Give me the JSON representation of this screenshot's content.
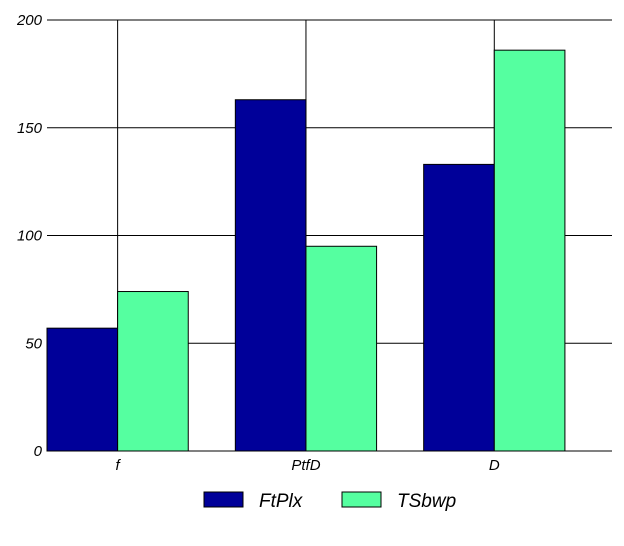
{
  "chart_data": {
    "type": "bar",
    "title": "",
    "xlabel": "",
    "ylabel": "",
    "categories": [
      "f",
      "PtfD",
      "D"
    ],
    "series": [
      {
        "name": "FtPlx",
        "color": "#000099",
        "values": [
          57,
          163,
          133
        ]
      },
      {
        "name": "TSbwp",
        "color": "#55ffa0",
        "values": [
          74,
          95,
          186
        ]
      }
    ],
    "ylim": [
      0,
      200
    ],
    "yticks": [
      0,
      50,
      100,
      150,
      200
    ],
    "ytick_labels": [
      "0",
      "50",
      "100",
      "150",
      "200"
    ],
    "grid": true,
    "legend": "bottom-center"
  }
}
